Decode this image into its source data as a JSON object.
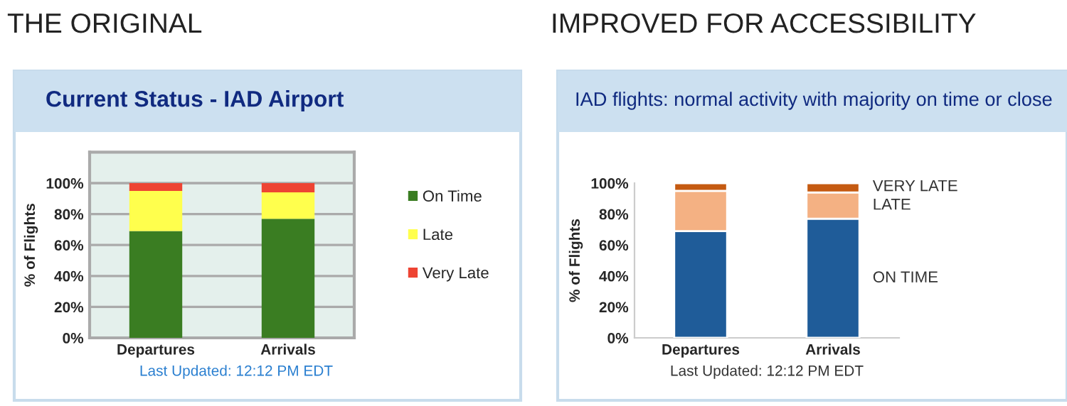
{
  "chart_data": [
    {
      "type": "bar",
      "stacked": true,
      "title": "Current Status - IAD Airport",
      "ylabel": "% of Flights",
      "categories": [
        "Departures",
        "Arrivals"
      ],
      "series": [
        {
          "name": "On Time",
          "color": "#3a7d22",
          "values": [
            69,
            77
          ]
        },
        {
          "name": "Late",
          "color": "#ffff4d",
          "values": [
            26,
            17
          ]
        },
        {
          "name": "Very Late",
          "color": "#ee4433",
          "values": [
            5,
            6
          ]
        }
      ],
      "ylim": [
        0,
        120
      ],
      "yticks": [
        {
          "value": 0,
          "label": "0%"
        },
        {
          "value": 20,
          "label": "20%"
        },
        {
          "value": 40,
          "label": "40%"
        },
        {
          "value": 60,
          "label": "60%"
        },
        {
          "value": 80,
          "label": "80%"
        },
        {
          "value": 100,
          "label": "100%"
        }
      ],
      "grid": "y",
      "legend": "right",
      "annotations": [
        "THE ORIGINAL",
        "Last Updated: 12:12 PM EDT"
      ]
    },
    {
      "type": "bar",
      "stacked": true,
      "title": "IAD flights: normal activity with majority on time or close",
      "ylabel": "% of Flights",
      "categories": [
        "Departures",
        "Arrivals"
      ],
      "series": [
        {
          "name": "ON TIME",
          "color": "#1f5c99",
          "values": [
            69,
            77
          ]
        },
        {
          "name": "LATE",
          "color": "#f4b183",
          "values": [
            26,
            17
          ]
        },
        {
          "name": "VERY LATE",
          "color": "#c55a11",
          "values": [
            5,
            6
          ]
        }
      ],
      "ylim": [
        0,
        100
      ],
      "yticks": [
        {
          "value": 0,
          "label": "0%"
        },
        {
          "value": 20,
          "label": "20%"
        },
        {
          "value": 40,
          "label": "40%"
        },
        {
          "value": 60,
          "label": "60%"
        },
        {
          "value": 80,
          "label": "80%"
        },
        {
          "value": 100,
          "label": "100%"
        }
      ],
      "grid": false,
      "legend": false,
      "annotations": [
        "IMPROVED FOR ACCESSIBILITY",
        "Last Updated: 12:12 PM EDT"
      ]
    }
  ]
}
